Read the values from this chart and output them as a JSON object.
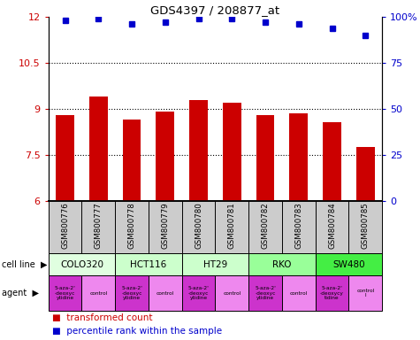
{
  "title": "GDS4397 / 208877_at",
  "samples": [
    "GSM800776",
    "GSM800777",
    "GSM800778",
    "GSM800779",
    "GSM800780",
    "GSM800781",
    "GSM800782",
    "GSM800783",
    "GSM800784",
    "GSM800785"
  ],
  "bar_values": [
    8.8,
    9.4,
    8.65,
    8.9,
    9.3,
    9.2,
    8.8,
    8.85,
    8.55,
    7.75
  ],
  "dot_values": [
    98,
    99,
    96,
    97,
    99,
    99,
    97,
    96,
    94,
    90
  ],
  "ylim_left": [
    6,
    12
  ],
  "ylim_right": [
    0,
    100
  ],
  "yticks_left": [
    6,
    7.5,
    9,
    10.5,
    12
  ],
  "yticks_right": [
    0,
    25,
    50,
    75,
    100
  ],
  "bar_color": "#cc0000",
  "dot_color": "#0000cc",
  "cell_line_labels": [
    "COLO320",
    "HCT116",
    "HT29",
    "RKO",
    "SW480"
  ],
  "cell_line_spans": [
    [
      0,
      2
    ],
    [
      2,
      4
    ],
    [
      4,
      6
    ],
    [
      6,
      8
    ],
    [
      8,
      10
    ]
  ],
  "cell_line_colors": [
    "#e0ffe0",
    "#ccffcc",
    "#ccffcc",
    "#99ff99",
    "#44ee44"
  ],
  "agent_texts": [
    "5-aza-2'\n-deoxyc\nytidine",
    "control",
    "5-aza-2'\n-deoxyc\nytidine",
    "control",
    "5-aza-2'\n-deoxyc\nytidine",
    "control",
    "5-aza-2'\n-deoxyc\nytidine",
    "control",
    "5-aza-2'\n-deoxycy\ntidine",
    "control\nl"
  ],
  "agent_colors": [
    "#dd44dd",
    "#dd44dd",
    "#dd44dd",
    "#dd44dd",
    "#dd44dd",
    "#dd44dd",
    "#dd44dd",
    "#dd44dd",
    "#dd44dd",
    "#dd44dd"
  ],
  "agent_bg_colors": [
    "#cc33cc",
    "#ee99ee",
    "#cc33cc",
    "#ee99ee",
    "#cc33cc",
    "#ee99ee",
    "#cc33cc",
    "#ee99ee",
    "#cc33cc",
    "#ee99ee"
  ],
  "sample_bg": "#cccccc",
  "legend_red_label": "transformed count",
  "legend_blue_label": "percentile rank within the sample"
}
